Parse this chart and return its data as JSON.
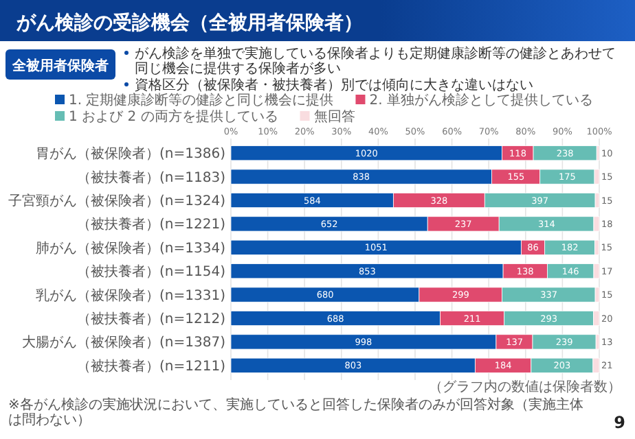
{
  "chart_data": {
    "type": "bar",
    "orientation": "horizontal",
    "stacked": true,
    "title": "がん検診の受診機会（全被用者保険者）",
    "annotations": [
      "全被用者保険者",
      "がん検診を単独で実施している保険者よりも定期健康診断等の健診とあわせて同じ機会に提供する保険者が多い",
      "資格区分（被保険者・被扶養者）別では傾向に大きな違いはない",
      "（グラフ内の数値は保険者数）",
      "※各がん検診の実施状況において、実施していると回答した保険者のみが回答対象（実施主体は問わない）",
      "9",
      {
        "text": "1020",
        "x": 36.8,
        "y": "胃がん（被保険者）(n=1386)"
      },
      {
        "text": "118",
        "x": 77.9,
        "y": "胃がん（被保険者）(n=1386)"
      },
      {
        "text": "238",
        "x": 90.7,
        "y": "胃がん（被保険者）(n=1386)"
      },
      {
        "text": "10",
        "x": 99.7,
        "y": "胃がん（被保険者）(n=1386)"
      },
      {
        "text": "838",
        "x": 35.4,
        "y": "（被扶養者）(n=1183)"
      },
      {
        "text": "155",
        "x": 77.4,
        "y": "（被扶養者）(n=1183)"
      },
      {
        "text": "175",
        "x": 91.3,
        "y": "（被扶養者）(n=1183)"
      },
      {
        "text": "15",
        "x": 99.4,
        "y": "（被扶養者）(n=1183)"
      },
      {
        "text": "584",
        "x": 22.1,
        "y": "子宮頸がん（被保険者）(n=1324)"
      },
      {
        "text": "328",
        "x": 56.5,
        "y": "子宮頸がん（被保険者）(n=1324)"
      },
      {
        "text": "397",
        "x": 83.9,
        "y": "子宮頸がん（被保険者）(n=1324)"
      },
      {
        "text": "15",
        "x": 99.5,
        "y": "子宮頸がん（被保険者）(n=1324)"
      },
      {
        "text": "652",
        "x": 26.7,
        "y": "（被扶養者）(n=1221)"
      },
      {
        "text": "237",
        "x": 63.1,
        "y": "（被扶養者）(n=1221)"
      },
      {
        "text": "314",
        "x": 85.7,
        "y": "（被扶養者）(n=1221)"
      },
      {
        "text": "18",
        "x": 99.3,
        "y": "（被扶養者）(n=1221)"
      },
      {
        "text": "1051",
        "x": 39.4,
        "y": "肺がん（被保険者）(n=1334)"
      },
      {
        "text": "86",
        "x": 82.0,
        "y": "肺がん（被保険者）(n=1334)"
      },
      {
        "text": "182",
        "x": 92.0,
        "y": "肺がん（被保険者）(n=1334)"
      },
      {
        "text": "15",
        "x": 99.4,
        "y": "肺がん（被保険者）(n=1334)"
      },
      {
        "text": "853",
        "x": 37.0,
        "y": "（被扶養者）(n=1154)"
      },
      {
        "text": "138",
        "x": 79.9,
        "y": "（被扶養者）(n=1154)"
      },
      {
        "text": "146",
        "x": 92.2,
        "y": "（被扶養者）(n=1154)"
      },
      {
        "text": "17",
        "x": 99.3,
        "y": "（被扶養者）(n=1154)"
      },
      {
        "text": "680",
        "x": 25.6,
        "y": "乳がん（被保険者）(n=1331)"
      },
      {
        "text": "299",
        "x": 62.4,
        "y": "乳がん（被保険者）(n=1331)"
      },
      {
        "text": "337",
        "x": 86.3,
        "y": "乳がん（被保険者）(n=1331)"
      },
      {
        "text": "15",
        "x": 99.5,
        "y": "乳がん（被保険者）(n=1331)"
      },
      {
        "text": "688",
        "x": 28.4,
        "y": "（被扶養者）(n=1212)"
      },
      {
        "text": "211",
        "x": 65.5,
        "y": "（被扶養者）(n=1212)"
      },
      {
        "text": "293",
        "x": 86.3,
        "y": "（被扶養者）(n=1212)"
      },
      {
        "text": "20",
        "x": 99.2,
        "y": "（被扶養者）(n=1212)"
      },
      {
        "text": "998",
        "x": 36.0,
        "y": "大腸がん（被保険者）(n=1387)"
      },
      {
        "text": "137",
        "x": 77.0,
        "y": "大腸がん（被保険者）(n=1387)"
      },
      {
        "text": "239",
        "x": 90.5,
        "y": "大腸がん（被保険者）(n=1387)"
      },
      {
        "text": "13",
        "x": 99.6,
        "y": "大腸がん（被保険者）(n=1387)"
      },
      {
        "text": "803",
        "x": 33.2,
        "y": "（被扶養者）(n=1211)"
      },
      {
        "text": "184",
        "x": 73.9,
        "y": "（被扶養者）(n=1211)"
      },
      {
        "text": "203",
        "x": 89.9,
        "y": "（被扶養者）(n=1211)"
      },
      {
        "text": "21",
        "x": 99.2,
        "y": "（被扶養者）(n=1211)"
      }
    ],
    "categories": [
      "胃がん（被保険者）(n=1386)",
      "（被扶養者）(n=1183)",
      "子宮頸がん（被保険者）(n=1324)",
      "（被扶養者）(n=1221)",
      "肺がん（被保険者）(n=1334)",
      "（被扶養者）(n=1154)",
      "乳がん（被保険者）(n=1331)",
      "（被扶養者）(n=1212)",
      "大腸がん（被保険者）(n=1387)",
      "（被扶養者）(n=1211)"
    ],
    "series": [
      {
        "name": "1. 定期健康診断等の健診と同じ機会に提供",
        "color": "#0b56b0",
        "values": [
          73.6,
          70.8,
          44.1,
          53.4,
          78.8,
          73.9,
          51.1,
          56.8,
          72.0,
          66.3
        ]
      },
      {
        "name": "2. 単独がん検診として提供している",
        "color": "#e04a6e",
        "values": [
          8.5,
          13.1,
          24.8,
          19.4,
          6.4,
          12.0,
          22.5,
          17.4,
          9.9,
          15.2
        ]
      },
      {
        "name": "1 および 2 の両方を提供している",
        "color": "#66bdb4",
        "values": [
          17.2,
          14.8,
          30.0,
          25.7,
          13.6,
          12.6,
          25.3,
          24.2,
          17.2,
          16.8
        ]
      },
      {
        "name": "無回答",
        "color": "#f9dde0",
        "values": [
          0.7,
          1.3,
          1.1,
          1.5,
          1.1,
          1.5,
          1.1,
          1.6,
          0.9,
          1.7
        ]
      }
    ],
    "xlim": [
      0,
      100
    ],
    "xticks": [
      {
        "value": 0,
        "label": "0%"
      },
      {
        "value": 10,
        "label": "10%"
      },
      {
        "value": 20,
        "label": "20%"
      },
      {
        "value": 30,
        "label": "30%"
      },
      {
        "value": 40,
        "label": "40%"
      },
      {
        "value": 50,
        "label": "50%"
      },
      {
        "value": 60,
        "label": "60%"
      },
      {
        "value": 70,
        "label": "70%"
      },
      {
        "value": 80,
        "label": "80%"
      },
      {
        "value": 90,
        "label": "90%"
      },
      {
        "value": 100,
        "label": "100%"
      }
    ],
    "grid": "x",
    "legend": "top"
  }
}
